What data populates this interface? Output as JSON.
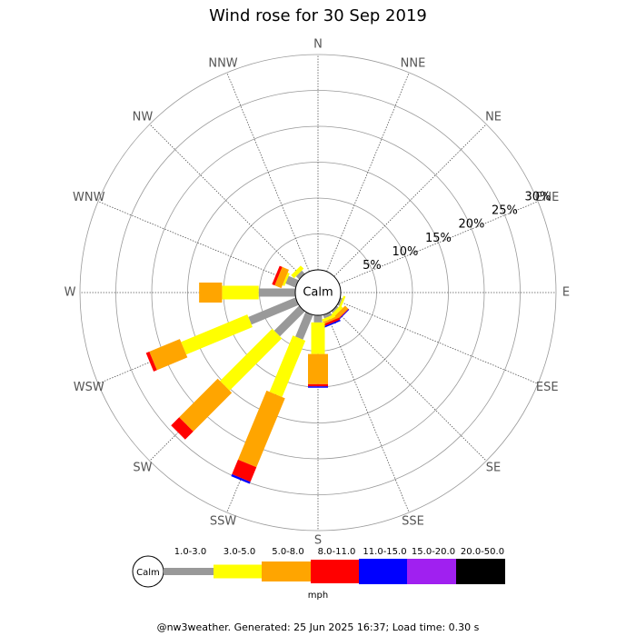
{
  "chart_data": {
    "type": "windrose",
    "title": "Wind rose for 30 Sep 2019",
    "calm_label": "Calm",
    "unit": "mph",
    "footer": "@nw3weather. Generated: 25 Jun 2025 16:37; Load time: 0.30 s",
    "categories": [
      "N",
      "NNE",
      "NE",
      "ENE",
      "E",
      "ESE",
      "SE",
      "SSE",
      "S",
      "SSW",
      "SW",
      "WSW",
      "W",
      "WNW",
      "NW",
      "NNW"
    ],
    "rlim": [
      0,
      30
    ],
    "rticks": [
      {
        "value": 5,
        "label": "5%"
      },
      {
        "value": 10,
        "label": "10%"
      },
      {
        "value": 15,
        "label": "15%"
      },
      {
        "value": 20,
        "label": "20%"
      },
      {
        "value": 25,
        "label": "25%"
      },
      {
        "value": 30,
        "label": "30%"
      }
    ],
    "grid": true,
    "series": [
      {
        "name": "1.0-3.0",
        "color": "#999999",
        "values": [
          0,
          0,
          0,
          0,
          0,
          0.3,
          0.3,
          0.5,
          1.0,
          3.7,
          4.9,
          7.1,
          5.1,
          1.5,
          0.6,
          0
        ]
      },
      {
        "name": "3.0-5.0",
        "color": "#ffff00",
        "values": [
          0,
          0,
          0,
          0,
          0,
          0.3,
          0.5,
          0.4,
          4.4,
          8.5,
          10.3,
          10.0,
          5.1,
          0.3,
          0.6,
          0
        ]
      },
      {
        "name": "5.0-8.0",
        "color": "#ffa500",
        "values": [
          0,
          0,
          0,
          0,
          0,
          0,
          0.6,
          0.3,
          4.2,
          10.4,
          7.6,
          4.6,
          3.2,
          1.0,
          0,
          0
        ]
      },
      {
        "name": "8.0-11.0",
        "color": "#ff0000",
        "values": [
          0,
          0,
          0,
          0,
          0,
          0,
          0.1,
          0.3,
          0.3,
          2.2,
          1.6,
          0.5,
          0,
          0.4,
          0,
          0
        ]
      },
      {
        "name": "11.0-15.0",
        "color": "#0000ff",
        "values": [
          0,
          0,
          0,
          0,
          0,
          0,
          0.1,
          0.2,
          0.2,
          0.3,
          0,
          0,
          0,
          0,
          0,
          0
        ]
      },
      {
        "name": "15.0-20.0",
        "color": "#a020f0",
        "values": [
          0,
          0,
          0,
          0,
          0,
          0,
          0,
          0,
          0,
          0,
          0,
          0,
          0,
          0,
          0,
          0
        ]
      },
      {
        "name": "20.0-50.0",
        "color": "#000000",
        "values": [
          0,
          0,
          0,
          0,
          0,
          0,
          0,
          0,
          0,
          0,
          0,
          0,
          0,
          0,
          0,
          0
        ]
      }
    ]
  }
}
